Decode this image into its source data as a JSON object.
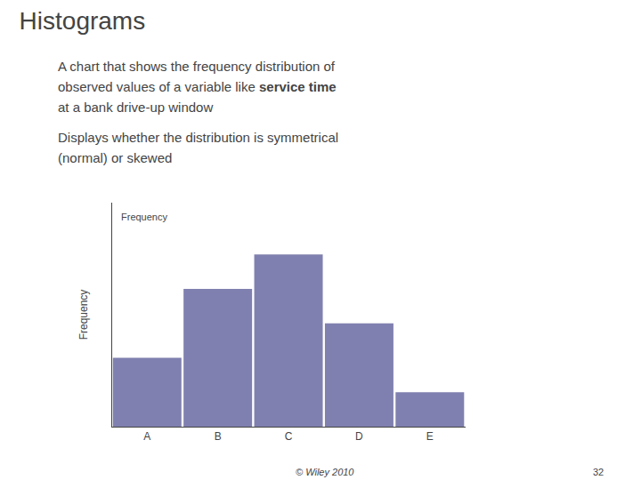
{
  "chart_data": {
    "type": "bar",
    "title": "Histograms",
    "categories": [
      "A",
      "B",
      "C",
      "D",
      "E"
    ],
    "values": [
      2,
      4,
      5,
      3,
      1
    ],
    "color": "#8080B0",
    "ylabel": "Frequency",
    "ylim": [
      0,
      6.5
    ],
    "yticks": [],
    "tick_labels": "x",
    "grid": false,
    "annotations": [
      "A chart that shows the frequency distribution of",
      "observed values of a variable like",
      "service time",
      "at a bank drive-up window",
      "Displays whether the distribution is symmetrical",
      "(normal) or skewed",
      "Frequency",
      "© Wiley 2010",
      "32"
    ]
  }
}
